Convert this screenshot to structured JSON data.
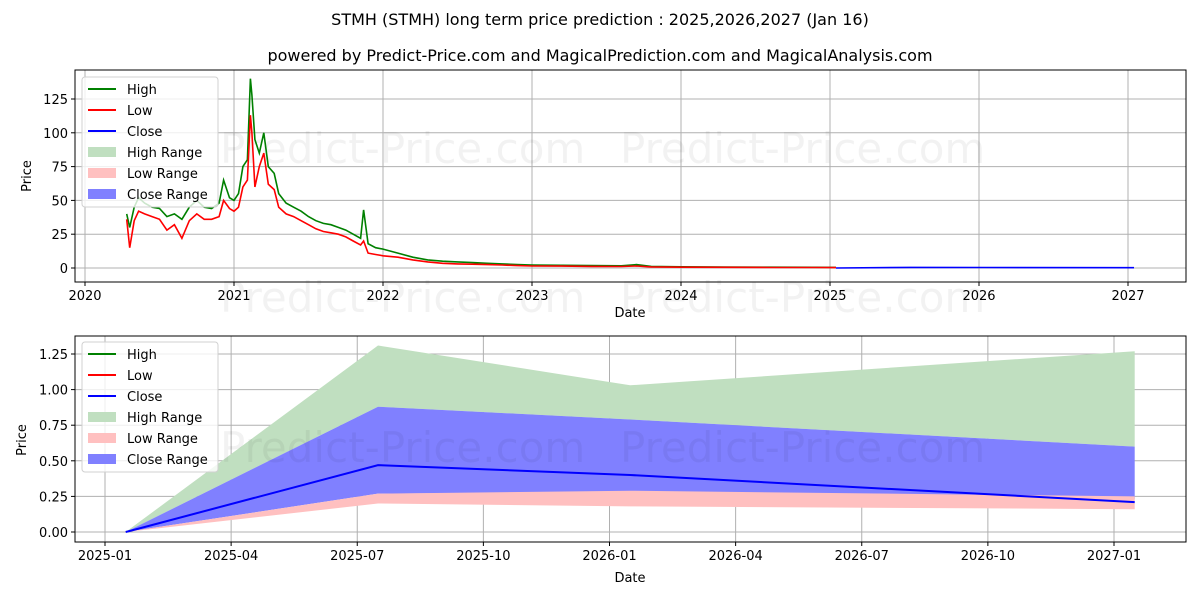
{
  "header": {
    "title": "STMH (STMH) long term price prediction : 2025,2026,2027 (Jan 16)",
    "subtitle": "powered by Predict-Price.com and MagicalPrediction.com and MagicalAnalysis.com"
  },
  "watermark": "Predict-Price.com",
  "colors": {
    "high": "#008000",
    "low": "#ff0000",
    "close": "#0000ff",
    "high_range": "#c0dfc0",
    "low_range": "#ffc0c0",
    "close_range": "#8080ff",
    "grid": "#b0b0b0"
  },
  "legend": [
    "High",
    "Low",
    "Close",
    "High Range",
    "Low Range",
    "Close Range"
  ],
  "chart_data": [
    {
      "type": "line",
      "title": "Historical prices",
      "xlabel": "Date",
      "ylabel": "Price",
      "x_ticks": [
        "2020",
        "2021",
        "2022",
        "2023",
        "2024",
        "2025",
        "2026",
        "2027"
      ],
      "y_ticks": [
        "0",
        "25",
        "50",
        "75",
        "100",
        "125"
      ],
      "ylim": [
        -5,
        145
      ],
      "grid": true,
      "legend_position": "upper left",
      "x": [
        2020.28,
        2020.3,
        2020.33,
        2020.36,
        2020.4,
        2020.45,
        2020.5,
        2020.55,
        2020.6,
        2020.65,
        2020.7,
        2020.75,
        2020.8,
        2020.85,
        2020.9,
        2020.93,
        2020.97,
        2021.0,
        2021.03,
        2021.06,
        2021.09,
        2021.11,
        2021.12,
        2021.14,
        2021.17,
        2021.2,
        2021.23,
        2021.27,
        2021.3,
        2021.35,
        2021.4,
        2021.45,
        2021.5,
        2021.55,
        2021.6,
        2021.65,
        2021.7,
        2021.75,
        2021.8,
        2021.85,
        2021.87,
        2021.9,
        2021.95,
        2022.0,
        2022.1,
        2022.2,
        2022.3,
        2022.4,
        2022.5,
        2022.6,
        2022.7,
        2022.8,
        2022.9,
        2023.0,
        2023.2,
        2023.4,
        2023.6,
        2023.7,
        2023.8,
        2024.0,
        2024.3,
        2024.6,
        2024.9,
        2025.04
      ],
      "series": [
        {
          "name": "High",
          "values": [
            40,
            30,
            45,
            52,
            48,
            45,
            44,
            38,
            40,
            36,
            45,
            50,
            45,
            44,
            48,
            65,
            52,
            50,
            55,
            75,
            80,
            140,
            128,
            95,
            85,
            100,
            75,
            70,
            55,
            48,
            45,
            42,
            38,
            35,
            33,
            32,
            30,
            28,
            25,
            22,
            43,
            18,
            15,
            14,
            11,
            8,
            6,
            5,
            4.5,
            4,
            3.5,
            3,
            2.5,
            2.2,
            2,
            1.8,
            1.6,
            2.5,
            1.2,
            0.9,
            0.7,
            0.6,
            0.5,
            0.45
          ]
        },
        {
          "name": "Low",
          "values": [
            36,
            15,
            35,
            42,
            40,
            38,
            36,
            28,
            32,
            22,
            35,
            40,
            36,
            36,
            38,
            50,
            44,
            42,
            45,
            60,
            65,
            113,
            100,
            60,
            75,
            85,
            62,
            58,
            45,
            40,
            38,
            35,
            32,
            29,
            27,
            26,
            25,
            23,
            20,
            17,
            20,
            11,
            10,
            9,
            8,
            6,
            4.5,
            3.5,
            3,
            2.8,
            2.5,
            2.2,
            1.8,
            1.5,
            1.4,
            1.2,
            1.1,
            1.5,
            0.8,
            0.6,
            0.5,
            0.4,
            0.35,
            0.3
          ]
        }
      ],
      "forecast_close": {
        "x": [
          2025.04,
          2025.54,
          2026.04,
          2027.04
        ],
        "values": [
          0.0,
          0.47,
          0.4,
          0.21
        ]
      }
    },
    {
      "type": "area",
      "title": "Forecast",
      "xlabel": "Date",
      "ylabel": "Price",
      "x_ticks": [
        "2025-01",
        "2025-04",
        "2025-07",
        "2025-10",
        "2026-01",
        "2026-04",
        "2026-07",
        "2026-10",
        "2027-01"
      ],
      "y_ticks": [
        "0.00",
        "0.25",
        "0.50",
        "0.75",
        "1.00",
        "1.25"
      ],
      "ylim": [
        -0.07,
        1.38
      ],
      "grid": true,
      "legend_position": "upper left",
      "x": [
        "2025-01-16",
        "2025-07-16",
        "2026-01-16",
        "2027-01-16"
      ],
      "series": [
        {
          "name": "High Range",
          "lower": [
            0.0,
            0.88,
            0.79,
            0.6
          ],
          "upper": [
            0.0,
            1.31,
            1.03,
            1.27
          ]
        },
        {
          "name": "Close Range",
          "lower": [
            0.0,
            0.27,
            0.28,
            0.23
          ],
          "upper": [
            0.0,
            0.88,
            0.79,
            0.6
          ]
        },
        {
          "name": "Low Range",
          "lower": [
            0.0,
            0.2,
            0.18,
            0.16
          ],
          "upper": [
            0.0,
            0.27,
            0.29,
            0.25
          ]
        },
        {
          "name": "Close",
          "values": [
            0.0,
            0.47,
            0.4,
            0.21
          ]
        }
      ]
    }
  ]
}
